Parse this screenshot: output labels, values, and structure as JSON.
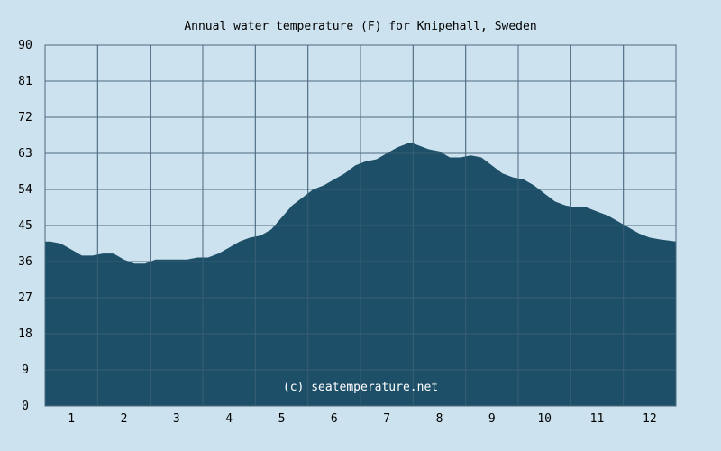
{
  "chart_data": {
    "type": "area",
    "title": "Annual water temperature (F) for Knipehall, Sweden",
    "watermark": "(c) seatemperature.net",
    "xlabel": "",
    "ylabel": "",
    "ylim": [
      0,
      90
    ],
    "xlim": [
      0.5,
      12.5
    ],
    "y_ticks": [
      "0",
      "9",
      "18",
      "27",
      "36",
      "45",
      "54",
      "63",
      "72",
      "81",
      "90"
    ],
    "x_ticks": [
      "1",
      "2",
      "3",
      "4",
      "5",
      "6",
      "7",
      "8",
      "9",
      "10",
      "11",
      "12"
    ],
    "grid": true,
    "colors": {
      "fill": "#1e4f68",
      "background": "#cce2ee",
      "grid": "#4d6b80"
    },
    "series": [
      {
        "x": [
          0.5,
          0.6,
          0.8,
          1.0,
          1.2,
          1.4,
          1.6,
          1.8,
          2.0,
          2.2,
          2.4,
          2.6,
          2.8,
          3.0,
          3.2,
          3.4,
          3.6,
          3.8,
          4.0,
          4.2,
          4.4,
          4.6,
          4.8,
          5.0,
          5.2,
          5.4,
          5.6,
          5.8,
          6.0,
          6.2,
          6.4,
          6.6,
          6.8,
          7.0,
          7.2,
          7.4,
          7.5,
          7.6,
          7.8,
          8.0,
          8.2,
          8.4,
          8.6,
          8.8,
          9.0,
          9.2,
          9.4,
          9.6,
          9.8,
          10.0,
          10.2,
          10.4,
          10.6,
          10.8,
          11.0,
          11.2,
          11.4,
          11.6,
          11.8,
          12.0,
          12.2,
          12.5
        ],
        "values": [
          41.0,
          41.0,
          40.5,
          39.0,
          37.5,
          37.5,
          38.0,
          38.0,
          36.5,
          35.5,
          35.5,
          36.5,
          36.5,
          36.5,
          36.5,
          37.0,
          37.0,
          38.0,
          39.5,
          41.0,
          42.0,
          42.5,
          44.0,
          47.0,
          50.0,
          52.0,
          54.0,
          55.0,
          56.5,
          58.0,
          60.0,
          61.0,
          61.5,
          63.0,
          64.5,
          65.5,
          65.5,
          65.0,
          64.0,
          63.5,
          62.0,
          62.0,
          62.5,
          62.0,
          60.0,
          58.0,
          57.0,
          56.5,
          55.0,
          53.0,
          51.0,
          50.0,
          49.5,
          49.5,
          48.5,
          47.5,
          46.0,
          44.5,
          43.0,
          42.0,
          41.5,
          41.0
        ]
      }
    ]
  }
}
